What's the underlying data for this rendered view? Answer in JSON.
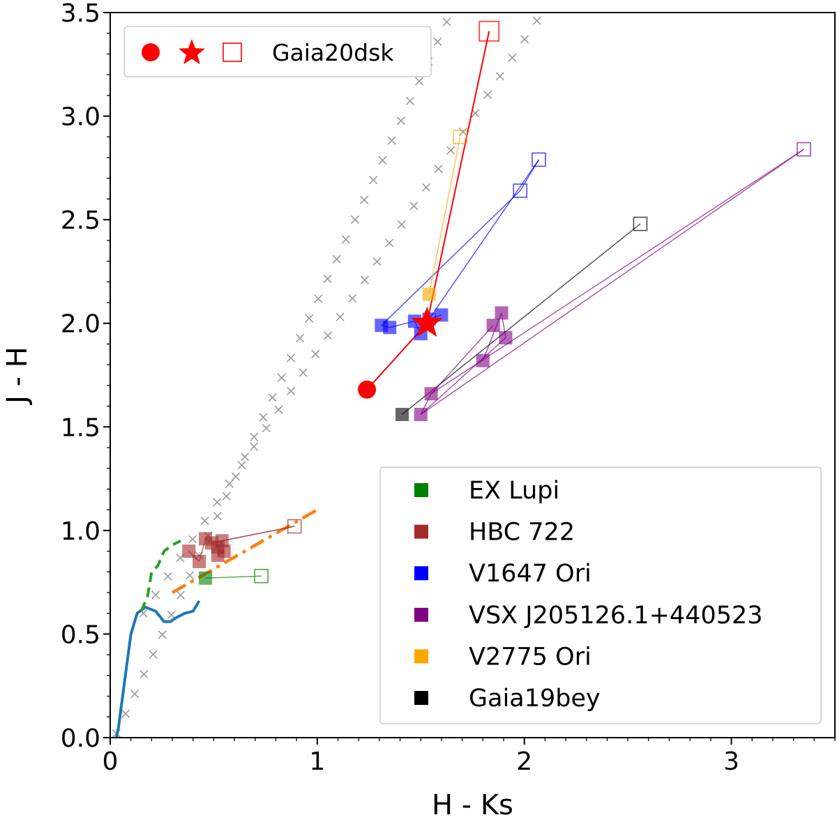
{
  "chart_data": {
    "type": "scatter",
    "xlabel": "H - Ks",
    "ylabel": "J - H",
    "xlim": [
      0,
      3.5
    ],
    "ylim": [
      0,
      3.5
    ],
    "x_ticks": [
      {
        "value": 0,
        "label": "0"
      },
      {
        "value": 1,
        "label": "1"
      },
      {
        "value": 2,
        "label": "2"
      },
      {
        "value": 3,
        "label": "3"
      }
    ],
    "y_ticks": [
      {
        "value": 0.0,
        "label": "0.0"
      },
      {
        "value": 0.5,
        "label": "0.5"
      },
      {
        "value": 1.0,
        "label": "1.0"
      },
      {
        "value": 1.5,
        "label": "1.5"
      },
      {
        "value": 2.0,
        "label": "2.0"
      },
      {
        "value": 2.5,
        "label": "2.5"
      },
      {
        "value": 3.0,
        "label": "3.0"
      },
      {
        "value": 3.5,
        "label": "3.5"
      }
    ],
    "grid": false,
    "legend_top": {
      "placement": "top-left",
      "markers": [
        "circle",
        "star",
        "open-square"
      ],
      "color": "#ff0000",
      "label": "Gaia20dsk"
    },
    "legend_main": {
      "placement": "lower-right",
      "entries": [
        {
          "label": "EX Lupi",
          "color": "#008000"
        },
        {
          "label": "HBC 722",
          "color": "#a52a2a"
        },
        {
          "label": "V1647 Ori",
          "color": "#0000ff"
        },
        {
          "label": "VSX J205126.1+440523",
          "color": "#800080"
        },
        {
          "label": "V2775 Ori",
          "color": "#ffa500"
        },
        {
          "label": "Gaia19bey",
          "color": "#000000"
        }
      ]
    },
    "reference_curves": {
      "main_sequence": {
        "color": "#1f77b4",
        "points": [
          [
            0.03,
            0.0
          ],
          [
            0.04,
            0.05
          ],
          [
            0.06,
            0.2
          ],
          [
            0.08,
            0.35
          ],
          [
            0.1,
            0.5
          ],
          [
            0.13,
            0.6
          ],
          [
            0.17,
            0.63
          ],
          [
            0.22,
            0.61
          ],
          [
            0.26,
            0.56
          ],
          [
            0.29,
            0.56
          ],
          [
            0.32,
            0.58
          ],
          [
            0.36,
            0.6
          ],
          [
            0.4,
            0.61
          ],
          [
            0.43,
            0.66
          ]
        ]
      },
      "giant_branch": {
        "color": "#2ca02c",
        "points": [
          [
            0.15,
            0.61
          ],
          [
            0.18,
            0.68
          ],
          [
            0.2,
            0.8
          ],
          [
            0.23,
            0.83
          ],
          [
            0.26,
            0.9
          ],
          [
            0.3,
            0.93
          ],
          [
            0.34,
            0.95
          ]
        ]
      },
      "ctts_locus": {
        "color": "#ff7f0e",
        "points": [
          [
            0.3,
            0.7
          ],
          [
            1.0,
            1.1
          ]
        ]
      },
      "reddening_line_1": {
        "color": "#999999",
        "points": [
          [
            0.03,
            0.02
          ],
          [
            1.67,
            3.55
          ]
        ]
      },
      "reddening_line_2": {
        "color": "#999999",
        "points": [
          [
            0.16,
            0.6
          ],
          [
            2.12,
            3.55
          ]
        ]
      }
    },
    "series": [
      {
        "name": "Gaia20dsk",
        "color": "#ff0000",
        "circle": [
          1.24,
          1.68
        ],
        "star": [
          1.53,
          2.0
        ],
        "open_square": [
          1.83,
          3.41
        ]
      },
      {
        "name": "EX Lupi",
        "color": "#008000",
        "filled": [
          [
            0.46,
            0.77
          ]
        ],
        "open": [
          0.73,
          0.78
        ]
      },
      {
        "name": "HBC 722",
        "color": "#a52a2a",
        "filled": [
          [
            0.38,
            0.9
          ],
          [
            0.43,
            0.85
          ],
          [
            0.46,
            0.96
          ],
          [
            0.49,
            0.94
          ],
          [
            0.52,
            0.92
          ],
          [
            0.54,
            0.95
          ],
          [
            0.52,
            0.88
          ],
          [
            0.55,
            0.9
          ]
        ],
        "open": [
          0.89,
          1.02
        ]
      },
      {
        "name": "V1647 Ori",
        "color": "#0000ff",
        "filled": [
          [
            1.31,
            1.99
          ],
          [
            1.35,
            1.98
          ],
          [
            1.47,
            2.01
          ],
          [
            1.5,
            1.95
          ],
          [
            1.54,
            2.02
          ],
          [
            1.6,
            2.04
          ]
        ],
        "open": [
          [
            1.98,
            2.64
          ],
          [
            2.07,
            2.79
          ]
        ]
      },
      {
        "name": "VSX J205126.1+440523",
        "color": "#800080",
        "filled": [
          [
            1.5,
            1.56
          ],
          [
            1.55,
            1.66
          ],
          [
            1.8,
            1.82
          ],
          [
            1.85,
            1.99
          ],
          [
            1.89,
            2.05
          ],
          [
            1.91,
            1.93
          ]
        ],
        "open": [
          3.35,
          2.84
        ]
      },
      {
        "name": "V2775 Ori",
        "color": "#ffa500",
        "filled": [
          [
            1.54,
            2.14
          ]
        ],
        "open": [
          1.69,
          2.9
        ]
      },
      {
        "name": "Gaia19bey",
        "color": "#000000",
        "filled": [
          [
            1.41,
            1.56
          ]
        ],
        "open": [
          2.56,
          2.48
        ]
      }
    ]
  }
}
